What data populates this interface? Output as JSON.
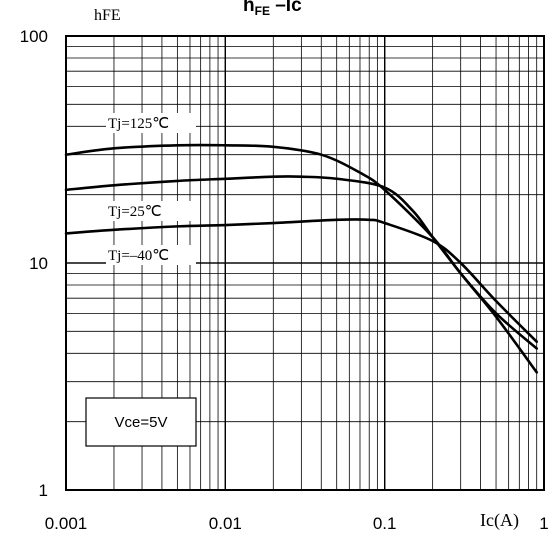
{
  "chart_data": {
    "type": "line",
    "title": {
      "main": "h",
      "sub": "FE",
      "suffix": " –Ic"
    },
    "xlabel": "Ic(A)",
    "ylabel": "hFE",
    "x_scale": "log",
    "y_scale": "log",
    "xlim": [
      0.001,
      1
    ],
    "ylim": [
      1,
      100
    ],
    "x_ticks": [
      "0.001",
      "0.01",
      "0.1",
      "1"
    ],
    "y_ticks": [
      "1",
      "10",
      "100"
    ],
    "grid": true,
    "annotation_box": "Vce=5V",
    "series": [
      {
        "name": "Tj=125℃",
        "points": [
          [
            0.001,
            30
          ],
          [
            0.002,
            32
          ],
          [
            0.005,
            33
          ],
          [
            0.01,
            33
          ],
          [
            0.02,
            32.5
          ],
          [
            0.04,
            30
          ],
          [
            0.07,
            25
          ],
          [
            0.1,
            21
          ],
          [
            0.2,
            13
          ],
          [
            0.3,
            9
          ],
          [
            0.5,
            6
          ],
          [
            0.9,
            4.2
          ]
        ]
      },
      {
        "name": "Tj=25℃",
        "points": [
          [
            0.001,
            21
          ],
          [
            0.002,
            22
          ],
          [
            0.005,
            23
          ],
          [
            0.01,
            23.5
          ],
          [
            0.02,
            24
          ],
          [
            0.03,
            24
          ],
          [
            0.05,
            23.5
          ],
          [
            0.1,
            21.5
          ],
          [
            0.15,
            17
          ],
          [
            0.2,
            13
          ],
          [
            0.3,
            9
          ],
          [
            0.5,
            5.8
          ],
          [
            0.9,
            3.3
          ]
        ]
      },
      {
        "name": "Tj=-40℃",
        "points": [
          [
            0.001,
            13.5
          ],
          [
            0.002,
            14
          ],
          [
            0.005,
            14.5
          ],
          [
            0.01,
            14.7
          ],
          [
            0.02,
            15
          ],
          [
            0.05,
            15.5
          ],
          [
            0.08,
            15.5
          ],
          [
            0.1,
            15
          ],
          [
            0.2,
            12.5
          ],
          [
            0.3,
            10
          ],
          [
            0.5,
            6.8
          ],
          [
            0.9,
            4.5
          ]
        ]
      }
    ],
    "curve_labels": [
      {
        "text": "Tj=125℃",
        "series": 0
      },
      {
        "text": "Tj=25℃",
        "series": 1
      },
      {
        "text": "Tj=–40℃",
        "series": 2
      }
    ]
  }
}
